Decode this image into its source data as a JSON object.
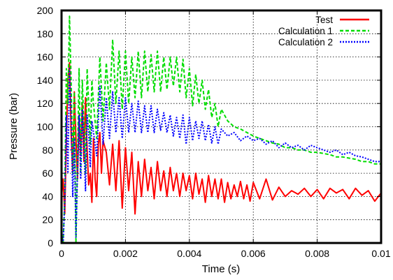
{
  "chart_data": {
    "type": "line",
    "xlabel": "Time (s)",
    "ylabel": "Pressure (bar)",
    "xlim": [
      0,
      0.01
    ],
    "ylim": [
      0,
      200
    ],
    "x_ticks": [
      "0",
      "0.002",
      "0.004",
      "0.006",
      "0.008",
      "0.01"
    ],
    "y_ticks": [
      "0",
      "20",
      "40",
      "60",
      "80",
      "100",
      "120",
      "140",
      "160",
      "180",
      "200"
    ],
    "grid": true,
    "legend_position": "top-right",
    "colors": {
      "test": "#ff0000",
      "calc1": "#00dd00",
      "calc2": "#0000ff"
    },
    "series": [
      {
        "name": "Test",
        "line_style": "solid",
        "x": [
          0,
          5e-05,
          0.0001,
          0.00015,
          0.0002,
          0.00025,
          0.0003,
          0.00035,
          0.0004,
          0.00045,
          0.0005,
          0.00055,
          0.0006,
          0.00065,
          0.0007,
          0.00075,
          0.0008,
          0.00085,
          0.0009,
          0.00095,
          0.001,
          0.00105,
          0.0011,
          0.00115,
          0.0012,
          0.00125,
          0.0013,
          0.0014,
          0.0015,
          0.0016,
          0.0017,
          0.0018,
          0.0019,
          0.002,
          0.0021,
          0.0022,
          0.0023,
          0.0024,
          0.0025,
          0.0026,
          0.0027,
          0.0028,
          0.0029,
          0.003,
          0.0031,
          0.0032,
          0.0033,
          0.0034,
          0.0035,
          0.0036,
          0.0037,
          0.0038,
          0.0039,
          0.004,
          0.0041,
          0.0042,
          0.0043,
          0.0044,
          0.0045,
          0.0046,
          0.0047,
          0.0048,
          0.0049,
          0.005,
          0.0051,
          0.0052,
          0.0053,
          0.0054,
          0.0055,
          0.0056,
          0.0057,
          0.0058,
          0.0059,
          0.006,
          0.0062,
          0.0064,
          0.0066,
          0.0068,
          0.007,
          0.0072,
          0.0074,
          0.0076,
          0.0078,
          0.008,
          0.0082,
          0.0084,
          0.0086,
          0.0088,
          0.009,
          0.0092,
          0.0094,
          0.0096,
          0.0098,
          0.01
        ],
        "y": [
          40,
          55,
          25,
          90,
          140,
          155,
          95,
          60,
          130,
          90,
          55,
          110,
          75,
          120,
          70,
          125,
          80,
          50,
          60,
          35,
          90,
          55,
          40,
          85,
          95,
          60,
          88,
          78,
          50,
          85,
          45,
          88,
          30,
          82,
          45,
          78,
          25,
          70,
          40,
          72,
          45,
          65,
          38,
          70,
          45,
          62,
          40,
          65,
          45,
          60,
          40,
          60,
          45,
          58,
          38,
          60,
          42,
          55,
          35,
          58,
          40,
          55,
          38,
          55,
          35,
          52,
          38,
          50,
          40,
          53,
          38,
          50,
          36,
          52,
          38,
          55,
          37,
          48,
          40,
          45,
          42,
          47,
          40,
          46,
          38,
          47,
          43,
          46,
          38,
          47,
          41,
          45,
          36,
          43
        ]
      },
      {
        "name": "Calculation 1",
        "line_style": "dashed",
        "x": [
          0,
          5e-05,
          0.0001,
          0.00015,
          0.0002,
          0.00025,
          0.0003,
          0.00035,
          0.0004,
          0.00045,
          0.0005,
          0.00055,
          0.0006,
          0.00065,
          0.0007,
          0.00075,
          0.0008,
          0.00085,
          0.0009,
          0.00095,
          0.001,
          0.0011,
          0.0012,
          0.0013,
          0.0014,
          0.0015,
          0.0016,
          0.0017,
          0.0018,
          0.0019,
          0.002,
          0.0021,
          0.0022,
          0.0023,
          0.0024,
          0.0025,
          0.0026,
          0.0027,
          0.0028,
          0.0029,
          0.003,
          0.0031,
          0.0032,
          0.0033,
          0.0034,
          0.0035,
          0.0036,
          0.0037,
          0.0038,
          0.0039,
          0.004,
          0.0041,
          0.0042,
          0.0043,
          0.0044,
          0.0045,
          0.0046,
          0.0047,
          0.0048,
          0.0049,
          0.005,
          0.0052,
          0.0054,
          0.0056,
          0.0058,
          0.006,
          0.0062,
          0.0064,
          0.0066,
          0.0068,
          0.007,
          0.0072,
          0.0074,
          0.0076,
          0.0078,
          0.008,
          0.0082,
          0.0084,
          0.0086,
          0.0088,
          0.009,
          0.0092,
          0.0094,
          0.0096,
          0.0098,
          0.01
        ],
        "y": [
          10,
          0,
          40,
          150,
          120,
          195,
          140,
          60,
          130,
          0,
          70,
          150,
          60,
          140,
          100,
          60,
          150,
          120,
          85,
          140,
          120,
          90,
          160,
          105,
          155,
          115,
          175,
          120,
          165,
          115,
          165,
          120,
          160,
          125,
          165,
          125,
          165,
          130,
          162,
          130,
          165,
          130,
          160,
          132,
          160,
          135,
          160,
          130,
          158,
          125,
          150,
          118,
          145,
          120,
          140,
          115,
          132,
          108,
          120,
          100,
          115,
          105,
          100,
          98,
          95,
          92,
          90,
          88,
          86,
          85,
          82,
          82,
          80,
          80,
          78,
          78,
          77,
          76,
          74,
          74,
          73,
          72,
          70,
          70,
          68,
          68
        ]
      },
      {
        "name": "Calculation 2",
        "line_style": "dotted",
        "x": [
          0,
          5e-05,
          0.0001,
          0.00015,
          0.0002,
          0.00025,
          0.0003,
          0.00035,
          0.0004,
          0.00045,
          0.0005,
          0.00055,
          0.0006,
          0.00065,
          0.0007,
          0.00075,
          0.0008,
          0.00085,
          0.0009,
          0.00095,
          0.001,
          0.0011,
          0.0012,
          0.0013,
          0.0014,
          0.0015,
          0.0016,
          0.0017,
          0.0018,
          0.0019,
          0.002,
          0.0021,
          0.0022,
          0.0023,
          0.0024,
          0.0025,
          0.0026,
          0.0027,
          0.0028,
          0.0029,
          0.003,
          0.0031,
          0.0032,
          0.0033,
          0.0034,
          0.0035,
          0.0036,
          0.0037,
          0.0038,
          0.0039,
          0.004,
          0.0041,
          0.0042,
          0.0043,
          0.0044,
          0.0045,
          0.0046,
          0.0047,
          0.0048,
          0.0049,
          0.005,
          0.0052,
          0.0054,
          0.0056,
          0.0058,
          0.006,
          0.0062,
          0.0064,
          0.0066,
          0.0068,
          0.007,
          0.0072,
          0.0074,
          0.0076,
          0.0078,
          0.008,
          0.0082,
          0.0084,
          0.0086,
          0.0088,
          0.009,
          0.0092,
          0.0094,
          0.0096,
          0.0098,
          0.01
        ],
        "y": [
          5,
          0,
          35,
          110,
          60,
          150,
          110,
          40,
          90,
          5,
          60,
          110,
          55,
          115,
          85,
          45,
          110,
          95,
          65,
          105,
          95,
          75,
          135,
          85,
          125,
          90,
          130,
          95,
          125,
          90,
          125,
          95,
          120,
          95,
          122,
          95,
          118,
          95,
          118,
          95,
          115,
          97,
          112,
          95,
          110,
          92,
          108,
          90,
          110,
          85,
          108,
          88,
          105,
          90,
          105,
          88,
          102,
          86,
          100,
          85,
          98,
          92,
          95,
          88,
          92,
          88,
          90,
          85,
          88,
          82,
          86,
          82,
          84,
          80,
          84,
          82,
          80,
          78,
          80,
          76,
          78,
          75,
          74,
          72,
          70,
          70
        ]
      }
    ]
  }
}
